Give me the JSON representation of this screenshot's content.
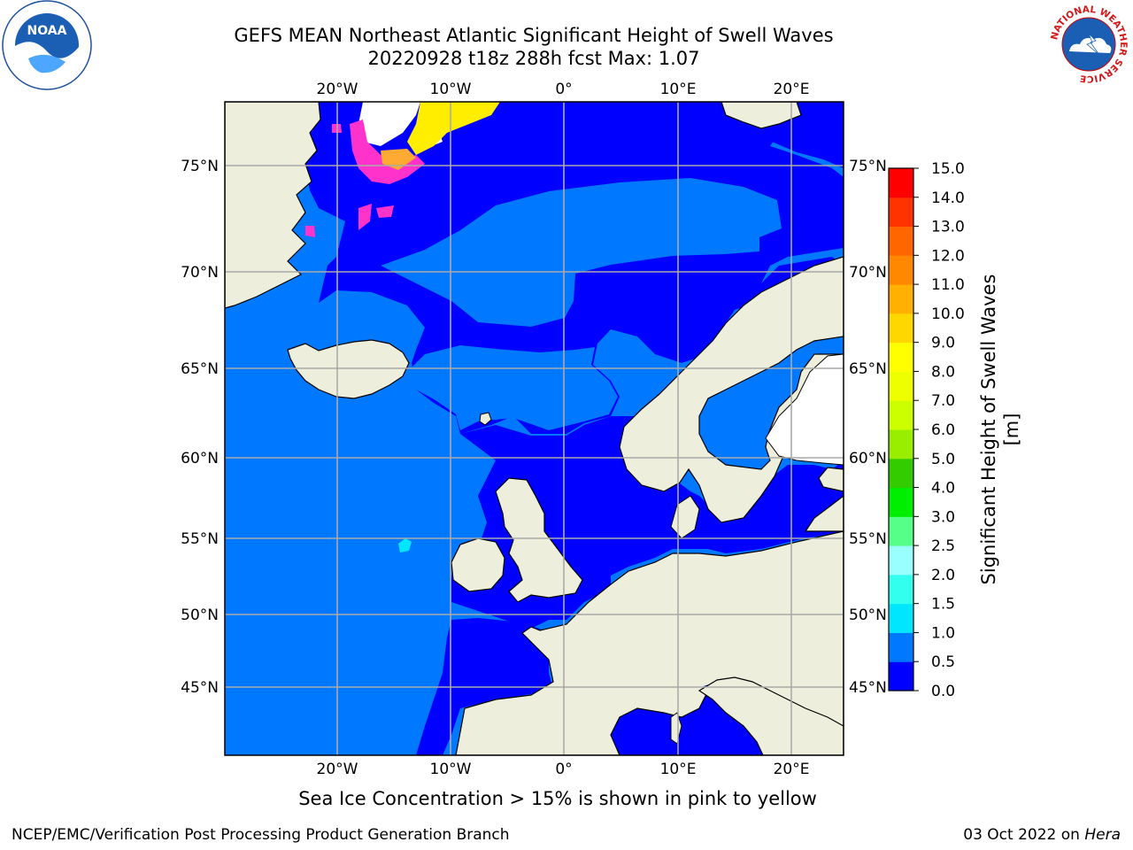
{
  "title": {
    "line1": "GEFS MEAN Northeast Atlantic Significant Height of Swell Waves",
    "line2": "20220928 t18z 288h fcst   Max: 1.07"
  },
  "map": {
    "lon_ticks_top": [
      "20°W",
      "10°W",
      "0°",
      "10°E",
      "20°E"
    ],
    "lon_ticks_bottom": [
      "20°W",
      "10°W",
      "0°",
      "10°E",
      "20°E"
    ],
    "lat_ticks_left": [
      "75°N",
      "70°N",
      "65°N",
      "60°N",
      "55°N",
      "50°N",
      "45°N"
    ],
    "lat_ticks_right": [
      "75°N",
      "70°N",
      "65°N",
      "60°N",
      "55°N",
      "50°N",
      "45°N"
    ],
    "colors": {
      "ocean_low": "#0000ff",
      "ocean_mid": "#0078ff",
      "land": "#eeeedd",
      "ice_pink": "#ff33cc",
      "ice_yellow": "#ffee00",
      "grid": "#aaaaaa"
    }
  },
  "colorbar": {
    "title": "Significant Height of Swell Waves [m]",
    "ticks": [
      "0.0",
      "0.5",
      "1.0",
      "1.5",
      "2.0",
      "2.5",
      "3.0",
      "4.0",
      "5.0",
      "6.0",
      "7.0",
      "8.0",
      "9.0",
      "10.0",
      "11.0",
      "12.0",
      "13.0",
      "14.0",
      "15.0"
    ],
    "bins": [
      "#0000ff",
      "#0078ff",
      "#00e6ff",
      "#33ffee",
      "#99ffff",
      "#55ff88",
      "#00ee00",
      "#33cc00",
      "#99ee00",
      "#ccff00",
      "#eeff00",
      "#ffff00",
      "#ffd700",
      "#ffb000",
      "#ff8800",
      "#ff6600",
      "#ff3300",
      "#ff0000"
    ]
  },
  "note": "Sea Ice Concentration > 15% is shown in pink to yellow",
  "credit": "NCEP/EMC/Verification Post Processing Product Generation Branch",
  "date": "03 Oct 2022 on ",
  "host": "Hera",
  "logos": {
    "noaa_text": "NOAA",
    "nws_text": "NATIONAL WEATHER SERVICE"
  }
}
